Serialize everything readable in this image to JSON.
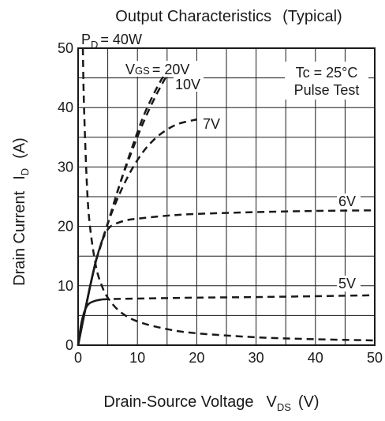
{
  "chart_data": {
    "type": "line",
    "title": "Output Characteristics",
    "subtitle": "(Typical)",
    "xlabel": "Drain-Source Voltage",
    "xlabel_symbol": "V",
    "xlabel_sub": "DS",
    "xlabel_unit": "(V)",
    "ylabel": "Drain Current",
    "ylabel_symbol": "I",
    "ylabel_sub": "D",
    "ylabel_unit": "(A)",
    "xlim": [
      0,
      50
    ],
    "ylim": [
      0,
      50
    ],
    "xticks": [
      0,
      10,
      20,
      30,
      40,
      50
    ],
    "yticks": [
      0,
      10,
      20,
      30,
      40,
      50
    ],
    "grid": true,
    "conditions": [
      "Tc = 25°C",
      "Pulse Test"
    ],
    "power_label": {
      "symbol": "P",
      "sub": "D",
      "value": "= 40W"
    },
    "series": [
      {
        "name": "V_GS = 20V",
        "style": "solid-dashed",
        "solid_until": 3,
        "label_parts": {
          "a": "V",
          "b": "GS",
          "c": "= 20V"
        },
        "x": [
          0,
          1,
          2,
          3,
          5,
          7,
          9,
          11,
          13,
          15
        ],
        "y": [
          0,
          5,
          9.8,
          14.2,
          20.5,
          27,
          32.5,
          37.5,
          41.8,
          45.5
        ]
      },
      {
        "name": "10V",
        "style": "solid-dashed",
        "solid_until": 3,
        "label": "10V",
        "x": [
          0,
          1,
          2,
          3,
          5,
          7,
          9,
          11,
          13,
          14.5
        ],
        "y": [
          0,
          5,
          9.8,
          14.2,
          20.5,
          27,
          33,
          38.5,
          42.8,
          45.5
        ]
      },
      {
        "name": "7V",
        "style": "solid-dashed",
        "solid_until": 3,
        "label": "7V",
        "x": [
          0,
          1,
          2,
          3,
          5,
          7,
          9,
          11,
          13,
          15,
          17,
          20
        ],
        "y": [
          0,
          5,
          9.8,
          14.2,
          20.5,
          25.5,
          29.5,
          32.6,
          34.8,
          36.3,
          37.3,
          38
        ]
      },
      {
        "name": "6V",
        "style": "solid-dashed",
        "solid_until": 4,
        "label": "6V",
        "x": [
          0,
          1,
          2,
          3,
          4,
          5,
          6,
          8,
          10,
          15,
          20,
          30,
          40,
          50
        ],
        "y": [
          0,
          5,
          9.8,
          14.2,
          17.5,
          19.5,
          20.3,
          21,
          21.3,
          21.8,
          22.1,
          22.4,
          22.6,
          22.7
        ]
      },
      {
        "name": "5V",
        "style": "solid-dashed",
        "solid_until": 4,
        "label": "5V",
        "x": [
          0,
          0.5,
          1,
          1.5,
          2,
          3,
          4,
          5,
          10,
          20,
          30,
          40,
          50
        ],
        "y": [
          0,
          3.5,
          5.5,
          6.6,
          7.1,
          7.5,
          7.7,
          7.75,
          7.85,
          8,
          8.1,
          8.25,
          8.4
        ]
      },
      {
        "name": "P_D = 40W",
        "style": "dashed",
        "x": [
          0.8,
          1,
          1.5,
          2,
          3,
          4,
          5,
          7,
          10,
          15,
          20,
          30,
          40,
          50
        ],
        "y": [
          50,
          40,
          26.7,
          20,
          13.3,
          10,
          8,
          5.7,
          4,
          2.7,
          2,
          1.33,
          1,
          0.8
        ]
      }
    ]
  }
}
